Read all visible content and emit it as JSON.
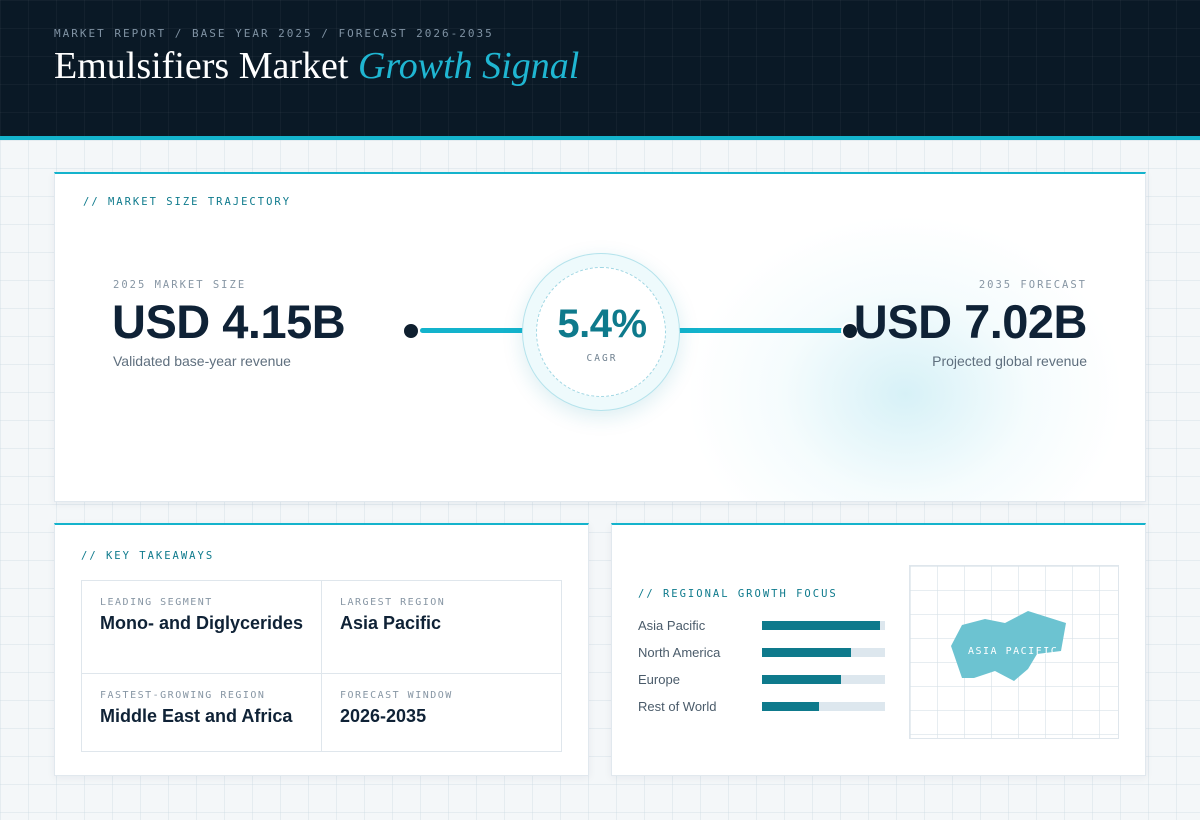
{
  "header": {
    "eyebrow": "MARKET REPORT / BASE YEAR 2025 / FORECAST 2026-2035",
    "title_main": "Emulsifiers Market",
    "title_accent": "Growth Signal"
  },
  "trajectory": {
    "section_label": "// MARKET SIZE TRAJECTORY",
    "start": {
      "label": "2025 MARKET SIZE",
      "value": "USD 4.15B",
      "sub": "Validated base-year revenue"
    },
    "cagr": {
      "value": "5.4%",
      "label": "CAGR"
    },
    "end": {
      "label": "2035 FORECAST",
      "value": "USD 7.02B",
      "sub": "Projected global revenue"
    }
  },
  "takeaways": {
    "section_label": "// KEY TAKEAWAYS",
    "items": [
      {
        "label": "LEADING SEGMENT",
        "value": "Mono- and Diglycerides"
      },
      {
        "label": "LARGEST REGION",
        "value": "Asia Pacific"
      },
      {
        "label": "FASTEST-GROWING REGION",
        "value": "Middle East and Africa"
      },
      {
        "label": "FORECAST WINDOW",
        "value": "2026-2035"
      }
    ]
  },
  "regional": {
    "section_label": "// REGIONAL GROWTH FOCUS",
    "bars": [
      {
        "name": "Asia Pacific",
        "share": 0.96
      },
      {
        "name": "North America",
        "share": 0.72
      },
      {
        "name": "Europe",
        "share": 0.64
      },
      {
        "name": "Rest of World",
        "share": 0.46
      }
    ],
    "map_label": "ASIA PACIFIC",
    "map_color": "#6cc3d1"
  },
  "colors": {
    "accent": "#14b3cc",
    "teal_dark": "#0e7a8c",
    "navy": "#0a1926"
  }
}
